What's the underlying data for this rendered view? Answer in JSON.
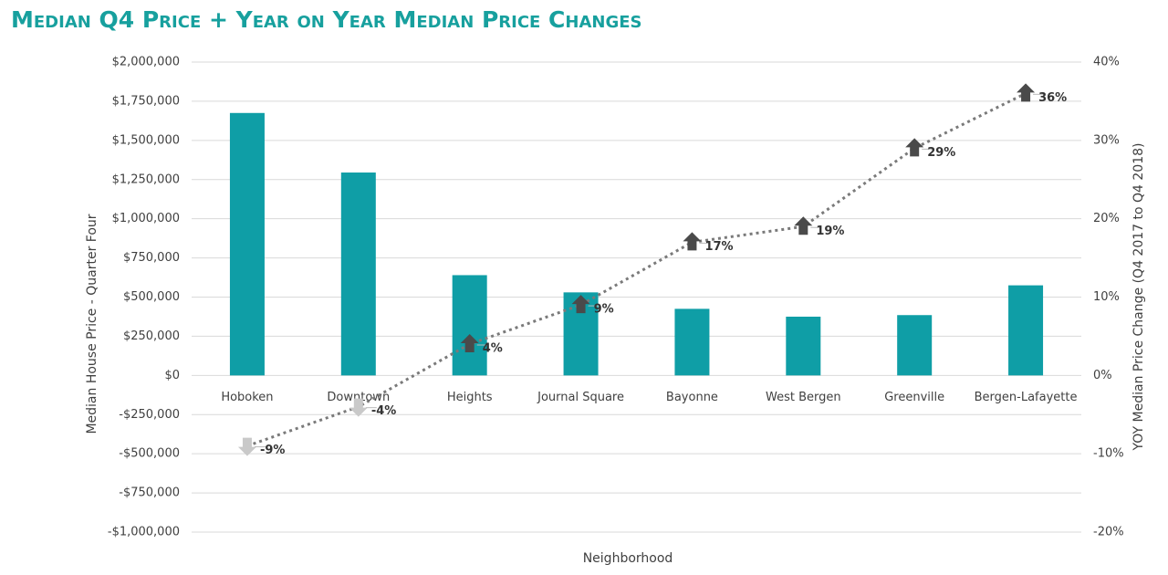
{
  "chart_data": {
    "type": "bar",
    "title": "Median Q4 Price + Year on Year Median Price Changes",
    "xlabel": "Neighborhood",
    "ylabel": "Median House Price - Quarter Four",
    "y2label": "YOY Median Price Change (Q4 2017 to Q4 2018)",
    "categories": [
      "Hoboken",
      "Downtown",
      "Heights",
      "Journal Square",
      "Bayonne",
      "West Bergen",
      "Greenville",
      "Bergen-Lafayette"
    ],
    "series": [
      {
        "type": "bar",
        "color": "#0f9ea6",
        "values": [
          1675000,
          1295000,
          640000,
          530000,
          425000,
          375000,
          385000,
          575000
        ]
      },
      {
        "type": "line",
        "axis": "y2",
        "color": "#7a7a7a",
        "up_color": "#4a4a4a",
        "down_color": "#c9c9c9",
        "values": [
          -9,
          -4,
          4,
          9,
          17,
          19,
          29,
          36
        ],
        "value_labels": [
          "-9%",
          "-4%",
          "4%",
          "9%",
          "17%",
          "19%",
          "29%",
          "36%"
        ]
      }
    ],
    "ylim": [
      -1000000,
      2000000
    ],
    "yticks": [
      {
        "value": -1000000,
        "label": "-$1,000,000"
      },
      {
        "value": -750000,
        "label": "-$750,000"
      },
      {
        "value": -500000,
        "label": "-$500,000"
      },
      {
        "value": -250000,
        "label": "-$250,000"
      },
      {
        "value": 0,
        "label": "$0"
      },
      {
        "value": 250000,
        "label": "$250,000"
      },
      {
        "value": 500000,
        "label": "$500,000"
      },
      {
        "value": 750000,
        "label": "$750,000"
      },
      {
        "value": 1000000,
        "label": "$1,000,000"
      },
      {
        "value": 1250000,
        "label": "$1,250,000"
      },
      {
        "value": 1500000,
        "label": "$1,500,000"
      },
      {
        "value": 1750000,
        "label": "$1,750,000"
      },
      {
        "value": 2000000,
        "label": "$2,000,000"
      }
    ],
    "y2lim": [
      -20,
      40
    ],
    "y2ticks": [
      {
        "value": -20,
        "label": "-20%"
      },
      {
        "value": -10,
        "label": "-10%"
      },
      {
        "value": 0,
        "label": "0%"
      },
      {
        "value": 10,
        "label": "10%"
      },
      {
        "value": 20,
        "label": "20%"
      },
      {
        "value": 30,
        "label": "30%"
      },
      {
        "value": 40,
        "label": "40%"
      }
    ],
    "grid": true
  }
}
